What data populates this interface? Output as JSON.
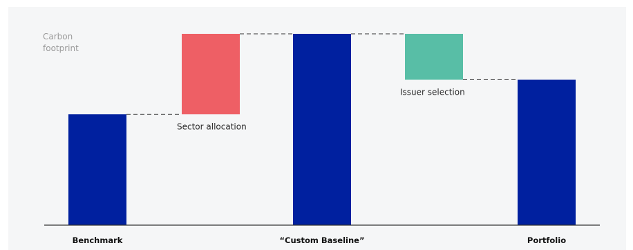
{
  "chart_data": {
    "type": "waterfall",
    "ylabel_lines": [
      "Carbon",
      "footprint"
    ],
    "ylim": [
      0,
      100
    ],
    "colors": {
      "total": "#00209f",
      "increase": "#ee5f65",
      "decrease": "#58bea6",
      "axis": "#333333",
      "connector": "#333333"
    },
    "bars": [
      {
        "id": "benchmark",
        "kind": "total",
        "start": 0,
        "end": 58,
        "category": "Benchmark",
        "label": ""
      },
      {
        "id": "sector",
        "kind": "increase",
        "start": 58,
        "end": 100,
        "category": "",
        "label": "Sector allocation"
      },
      {
        "id": "baseline",
        "kind": "total",
        "start": 0,
        "end": 100,
        "category": "“Custom Baseline”",
        "label": ""
      },
      {
        "id": "issuer",
        "kind": "decrease",
        "start": 100,
        "end": 76,
        "category": "",
        "label": "Issuer selection"
      },
      {
        "id": "portfolio",
        "kind": "total",
        "start": 0,
        "end": 76,
        "category": "Portfolio",
        "label": ""
      }
    ]
  }
}
